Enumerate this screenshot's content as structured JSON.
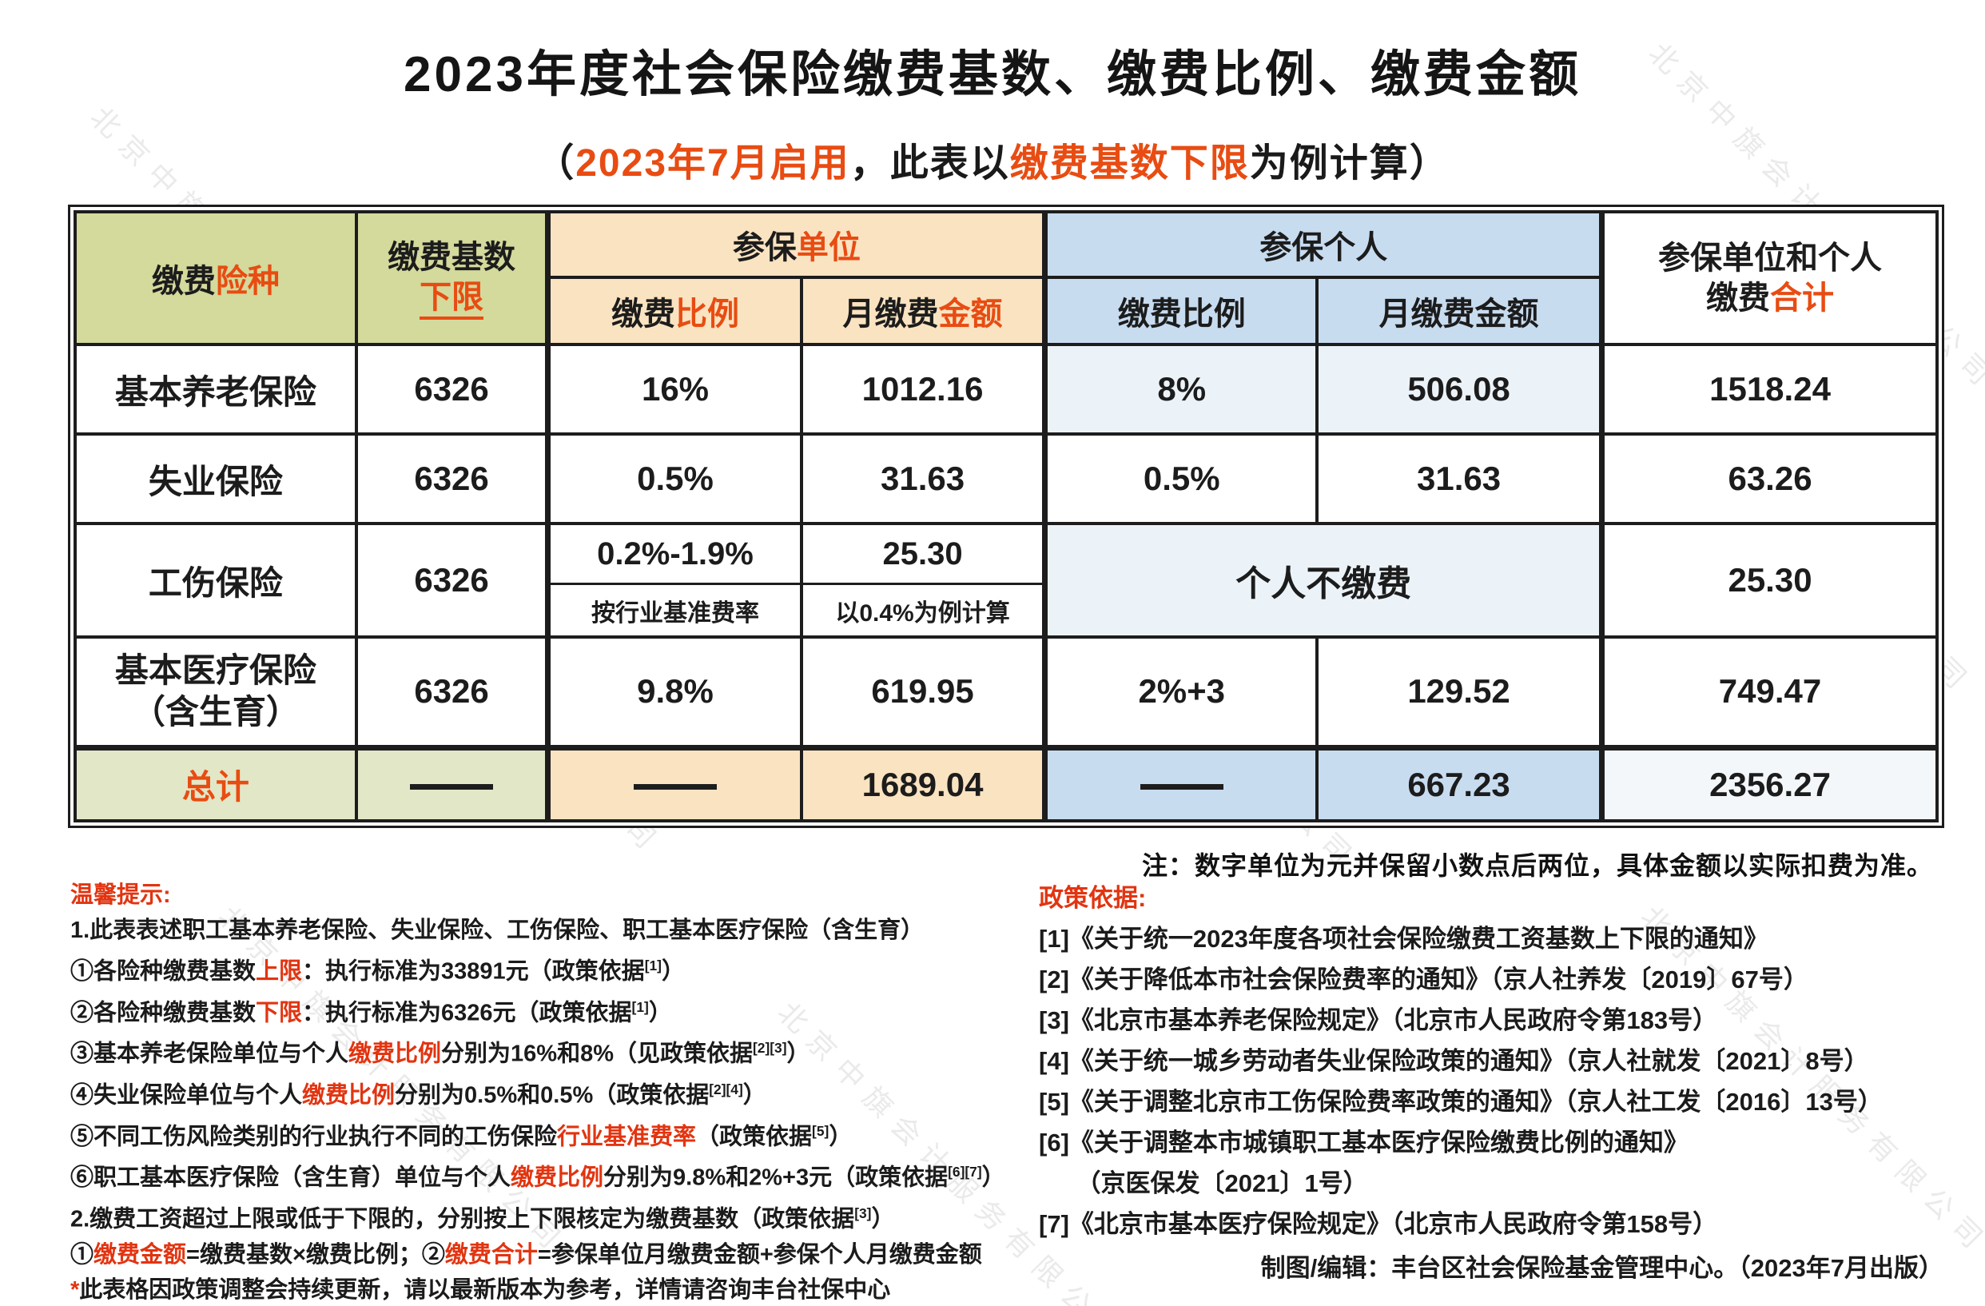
{
  "watermark": {
    "text": "北京中旗会计服务有限公司"
  },
  "title": "2023年度社会保险缴费基数、缴费比例、缴费金额",
  "subtitle": {
    "open": "（",
    "highlight1": "2023年7月启用",
    "mid": "，此表以",
    "highlight2": "缴费基数下限",
    "tail": "为例计算）"
  },
  "colors": {
    "accent": "#e84c12",
    "red": "#e23410",
    "green": "#d4d99c",
    "peach": "#fae3c1",
    "blue": "#c8dcf0"
  },
  "table": {
    "header": {
      "type_black": "缴费",
      "type_accent": "险种",
      "base_line1": "缴费基数",
      "base_line2": "下限",
      "unit_black": "参保",
      "unit_accent": "单位",
      "person": "参保个人",
      "sum_line1": "参保单位和个人",
      "sum_line2_black": "缴费",
      "sum_line2_accent": "合计",
      "ratio_black": "缴费",
      "ratio_accent": "比例",
      "amount_black": "月缴费",
      "amount_accent": "金额",
      "person_ratio": "缴费比例",
      "person_amount": "月缴费金额"
    },
    "rows": [
      {
        "name": "基本养老保险",
        "base": "6326",
        "unit_ratio": "16%",
        "unit_amount": "1012.16",
        "person_ratio": "8%",
        "person_amount": "506.08",
        "sum": "1518.24"
      },
      {
        "name": "失业保险",
        "base": "6326",
        "unit_ratio": "0.5%",
        "unit_amount": "31.63",
        "person_ratio": "0.5%",
        "person_amount": "31.63",
        "sum": "63.26"
      },
      {
        "name": "工伤保险",
        "base": "6326",
        "unit_ratio_top": "0.2%-1.9%",
        "unit_ratio_note": "按行业基准费率",
        "unit_amount_top": "25.30",
        "unit_amount_note": "以0.4%为例计算",
        "person_note": "个人不缴费",
        "sum": "25.30"
      },
      {
        "name_line1": "基本医疗保险",
        "name_line2": "（含生育）",
        "base": "6326",
        "unit_ratio": "9.8%",
        "unit_amount": "619.95",
        "person_ratio": "2%+3",
        "person_amount": "129.52",
        "sum": "749.47"
      }
    ],
    "total": {
      "label": "总计",
      "dash": "——",
      "unit_amount": "1689.04",
      "person_amount": "667.23",
      "sum": "2356.27"
    },
    "note": "注：数字单位为元并保留小数点后两位，具体金额以实际扣费为准。"
  },
  "notes_left": {
    "heading": "温馨提示:",
    "lines": [
      [
        {
          "t": "1.此表表述职工基本养老保险、失业保险、工伤保险、职工基本医疗保险（含生育）"
        }
      ],
      [
        {
          "t": "①各险种缴费基数"
        },
        {
          "t": "上限",
          "red": true
        },
        {
          "t": "：执行标准为33891元（政策依据"
        },
        {
          "t": "[1]",
          "sup": true
        },
        {
          "t": "）"
        }
      ],
      [
        {
          "t": "②各险种缴费基数"
        },
        {
          "t": "下限",
          "red": true
        },
        {
          "t": "：执行标准为6326元（政策依据"
        },
        {
          "t": "[1]",
          "sup": true
        },
        {
          "t": "）"
        }
      ],
      [
        {
          "t": "③基本养老保险单位与个人"
        },
        {
          "t": "缴费比例",
          "red": true
        },
        {
          "t": "分别为16%和8%（见政策依据"
        },
        {
          "t": "[2][3]",
          "sup": true
        },
        {
          "t": "）"
        }
      ],
      [
        {
          "t": "④失业保险单位与个人"
        },
        {
          "t": "缴费比例",
          "red": true
        },
        {
          "t": "分别为0.5%和0.5%（政策依据"
        },
        {
          "t": "[2][4]",
          "sup": true
        },
        {
          "t": "）"
        }
      ],
      [
        {
          "t": "⑤不同工伤风险类别的行业执行不同的工伤保险"
        },
        {
          "t": "行业基准费率",
          "red": true
        },
        {
          "t": "（政策依据"
        },
        {
          "t": "[5]",
          "sup": true
        },
        {
          "t": "）"
        }
      ],
      [
        {
          "t": "⑥职工基本医疗保险（含生育）单位与个人"
        },
        {
          "t": "缴费比例",
          "red": true
        },
        {
          "t": "分别为9.8%和2%+3元（政策依据"
        },
        {
          "t": "[6][7]",
          "sup": true
        },
        {
          "t": "）"
        }
      ],
      [
        {
          "t": "2.缴费工资超过上限或低于下限的，分别按上下限核定为缴费基数（政策依据"
        },
        {
          "t": "[3]",
          "sup": true
        },
        {
          "t": "）"
        }
      ],
      [
        {
          "t": "①"
        },
        {
          "t": "缴费金额",
          "red": true
        },
        {
          "t": "=缴费基数×缴费比例；②"
        },
        {
          "t": "缴费合计",
          "red": true
        },
        {
          "t": "=参保单位月缴费金额+参保个人月缴费金额"
        }
      ],
      [
        {
          "t": "*",
          "red": true
        },
        {
          "t": "此表格因政策调整会持续更新，请以最新版本为参考，详情请咨询丰台社保中心"
        }
      ]
    ]
  },
  "notes_right": {
    "heading": "政策依据:",
    "lines": [
      [
        {
          "t": "[1]《关于统一2023年度各项社会保险缴费工资基数上下限的通知》"
        }
      ],
      [
        {
          "t": "[2]《关于降低本市社会保险费率的通知》（京人社养发〔2019〕67号）"
        }
      ],
      [
        {
          "t": "[3]《北京市基本养老保险规定》（北京市人民政府令第183号）"
        }
      ],
      [
        {
          "t": "[4]《关于统一城乡劳动者失业保险政策的通知》（京人社就发〔2021〕8号）"
        }
      ],
      [
        {
          "t": "[5]《关于调整北京市工伤保险费率政策的通知》（京人社工发〔2016〕13号）"
        }
      ],
      [
        {
          "t": "[6]《关于调整本市城镇职工基本医疗保险缴费比例的通知》"
        }
      ],
      [
        {
          "t": "　　（京医保发〔2021〕1号）"
        }
      ],
      [
        {
          "t": "[7]《北京市基本医疗保险规定》（北京市人民政府令第158号）"
        }
      ]
    ],
    "credit": "制图/编辑：丰台区社会保险基金管理中心。（2023年7月出版）"
  }
}
